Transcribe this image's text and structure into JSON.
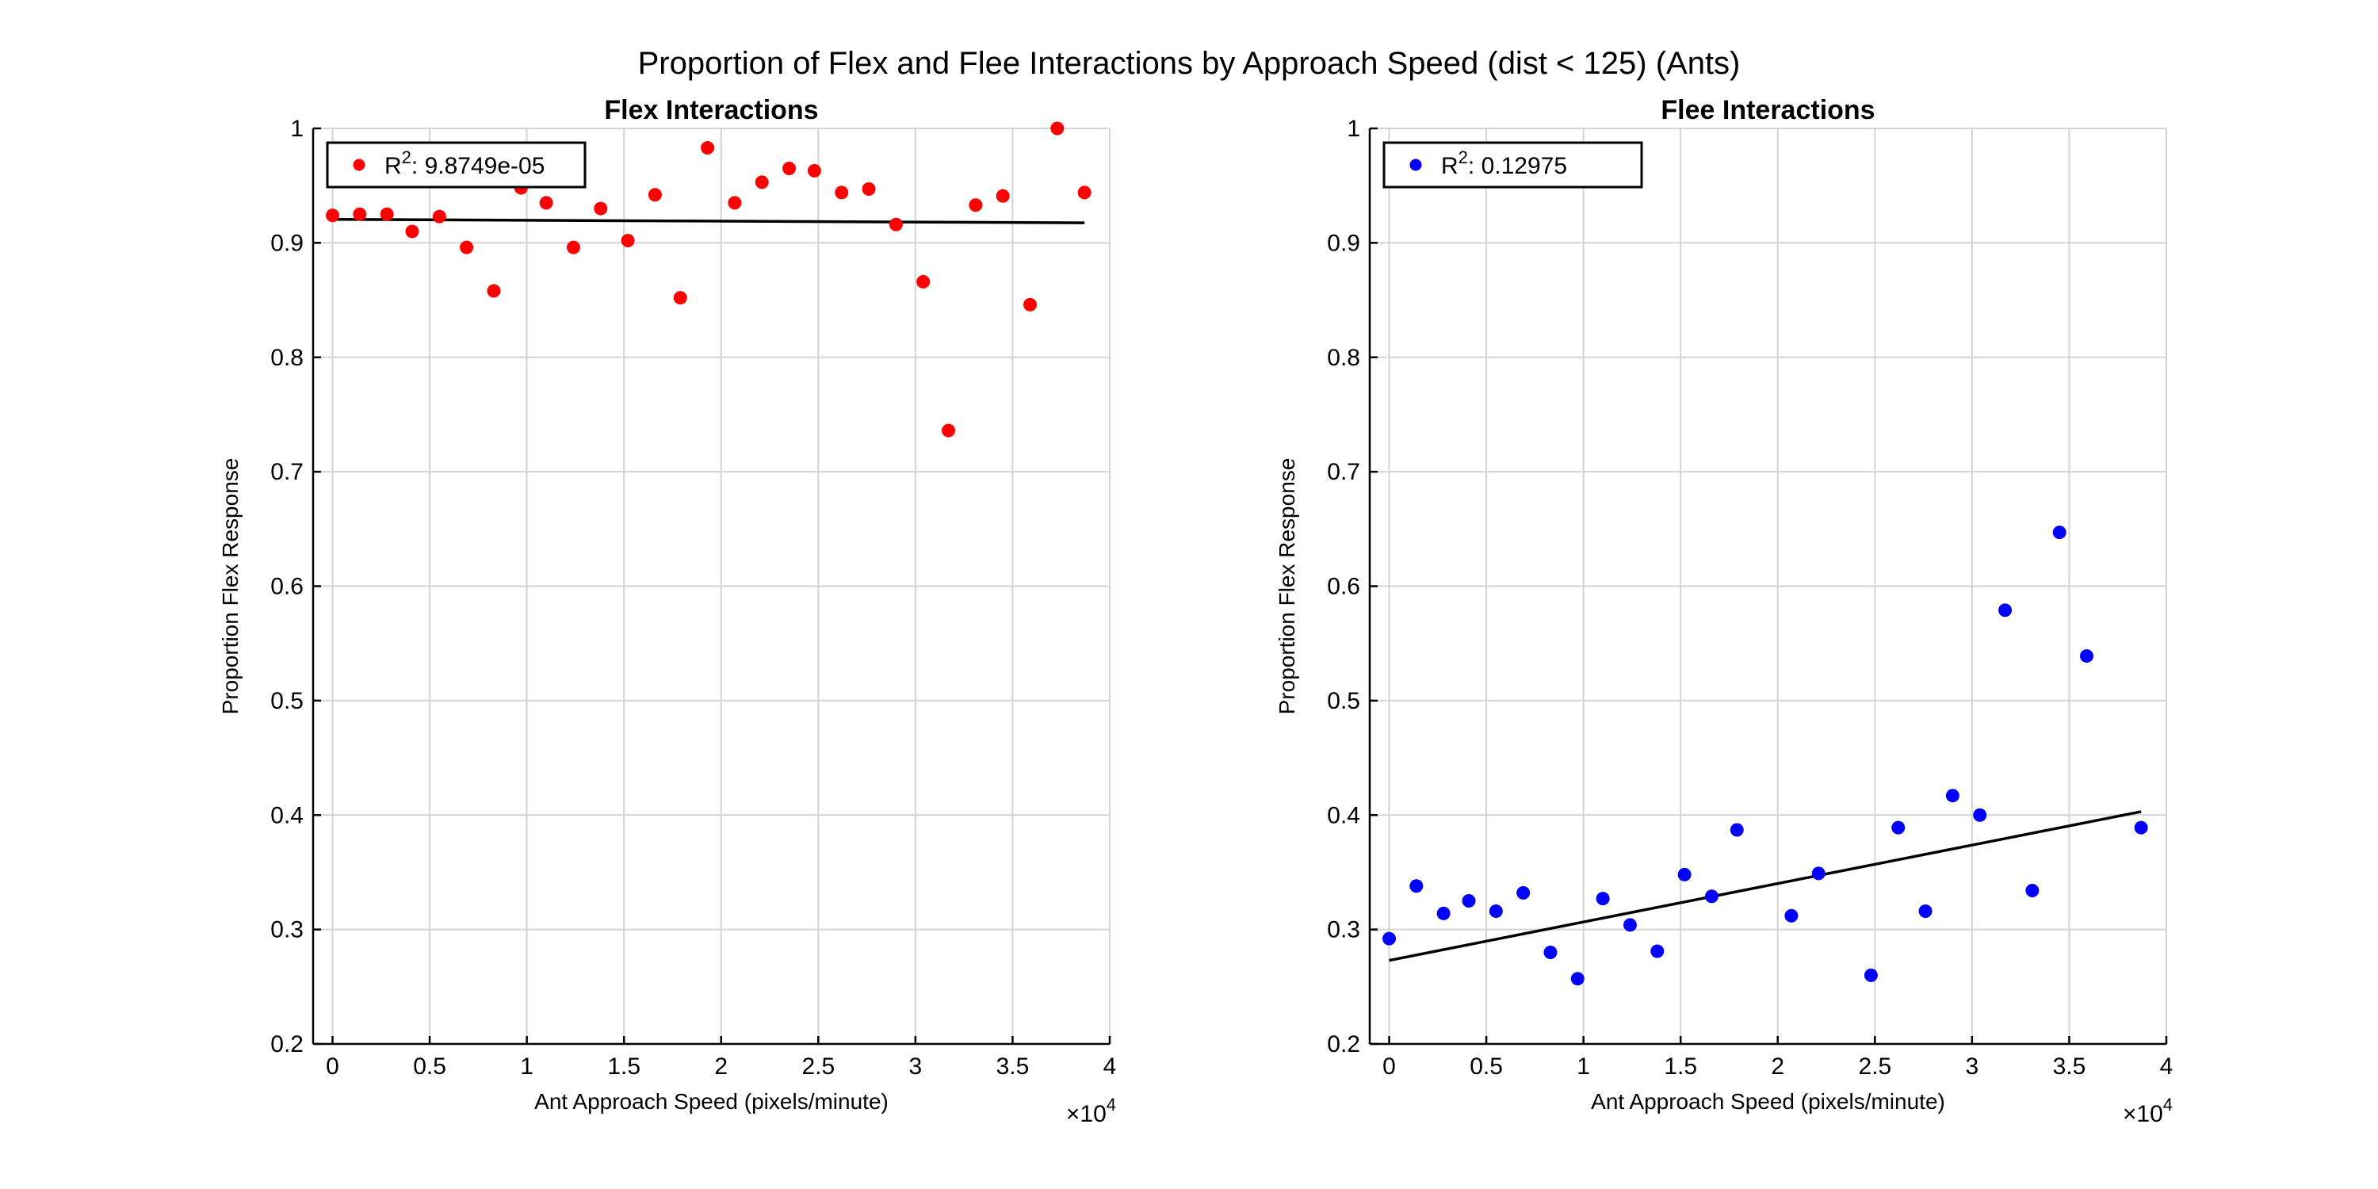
{
  "figure": {
    "title": "Proportion of Flex and Flee Interactions by Approach Speed (dist < 125) (Ants)",
    "exponent_label": "×10",
    "exponent_power": "4"
  },
  "chart_data": [
    {
      "type": "scatter",
      "title": "Flex Interactions",
      "xlabel": "Ant Approach Speed (pixels/minute)",
      "ylabel": "Proportion Flex Response",
      "xlim": [
        -0.1,
        4
      ],
      "ylim": [
        0.2,
        1
      ],
      "xticks": [
        0,
        0.5,
        1,
        1.5,
        2,
        2.5,
        3,
        3.5,
        4
      ],
      "xtick_labels": [
        "0",
        "0.5",
        "1",
        "1.5",
        "2",
        "2.5",
        "3",
        "3.5",
        "4"
      ],
      "yticks": [
        0.2,
        0.3,
        0.4,
        0.5,
        0.6,
        0.7,
        0.8,
        0.9,
        1
      ],
      "ytick_labels": [
        "0.2",
        "0.3",
        "0.4",
        "0.5",
        "0.6",
        "0.7",
        "0.8",
        "0.9",
        "1"
      ],
      "x_scale_note": "x values in units of 10^4",
      "grid": true,
      "legend": {
        "position": "top-left",
        "prefix": "R",
        "sup": "2",
        "value": ": 9.8749e-05"
      },
      "series": [
        {
          "color": "#ff0000",
          "x": [
            0,
            0.14,
            0.28,
            0.41,
            0.55,
            0.69,
            0.83,
            0.97,
            1.1,
            1.24,
            1.38,
            1.52,
            1.66,
            1.79,
            1.93,
            2.07,
            2.21,
            2.35,
            2.48,
            2.62,
            2.76,
            2.9,
            3.04,
            3.17,
            3.31,
            3.45,
            3.59,
            3.73,
            3.87
          ],
          "y": [
            0.924,
            0.925,
            0.925,
            0.91,
            0.923,
            0.896,
            0.858,
            0.948,
            0.935,
            0.896,
            0.93,
            0.902,
            0.942,
            0.852,
            0.983,
            0.935,
            0.953,
            0.965,
            0.963,
            0.944,
            0.947,
            0.916,
            0.866,
            0.736,
            0.933,
            0.941,
            0.846,
            1.0,
            0.944
          ]
        }
      ],
      "fit": {
        "color": "#000000",
        "x": [
          0,
          3.87
        ],
        "y": [
          0.9205,
          0.9175
        ]
      }
    },
    {
      "type": "scatter",
      "title": "Flee Interactions",
      "xlabel": "Ant Approach Speed (pixels/minute)",
      "ylabel": "Proportion Flex Response",
      "xlim": [
        -0.1,
        4
      ],
      "ylim": [
        0.2,
        1
      ],
      "xticks": [
        0,
        0.5,
        1,
        1.5,
        2,
        2.5,
        3,
        3.5,
        4
      ],
      "xtick_labels": [
        "0",
        "0.5",
        "1",
        "1.5",
        "2",
        "2.5",
        "3",
        "3.5",
        "4"
      ],
      "yticks": [
        0.2,
        0.3,
        0.4,
        0.5,
        0.6,
        0.7,
        0.8,
        0.9,
        1
      ],
      "ytick_labels": [
        "0.2",
        "0.3",
        "0.4",
        "0.5",
        "0.6",
        "0.7",
        "0.8",
        "0.9",
        "1"
      ],
      "x_scale_note": "x values in units of 10^4",
      "grid": true,
      "legend": {
        "position": "top-left",
        "prefix": "R",
        "sup": "2",
        "value": ": 0.12975"
      },
      "series": [
        {
          "color": "#0000ff",
          "x": [
            0,
            0.14,
            0.28,
            0.41,
            0.55,
            0.69,
            0.83,
            0.97,
            1.1,
            1.24,
            1.38,
            1.52,
            1.66,
            1.79,
            2.07,
            2.21,
            2.48,
            2.62,
            2.76,
            2.9,
            3.04,
            3.17,
            3.31,
            3.45,
            3.59,
            3.87
          ],
          "y": [
            0.292,
            0.338,
            0.314,
            0.325,
            0.316,
            0.332,
            0.28,
            0.257,
            0.327,
            0.304,
            0.281,
            0.348,
            0.329,
            0.387,
            0.312,
            0.349,
            0.26,
            0.389,
            0.316,
            0.417,
            0.4,
            0.579,
            0.334,
            0.647,
            0.539,
            0.389
          ]
        }
      ],
      "fit": {
        "color": "#000000",
        "x": [
          0,
          3.87
        ],
        "y": [
          0.273,
          0.403
        ]
      }
    }
  ]
}
